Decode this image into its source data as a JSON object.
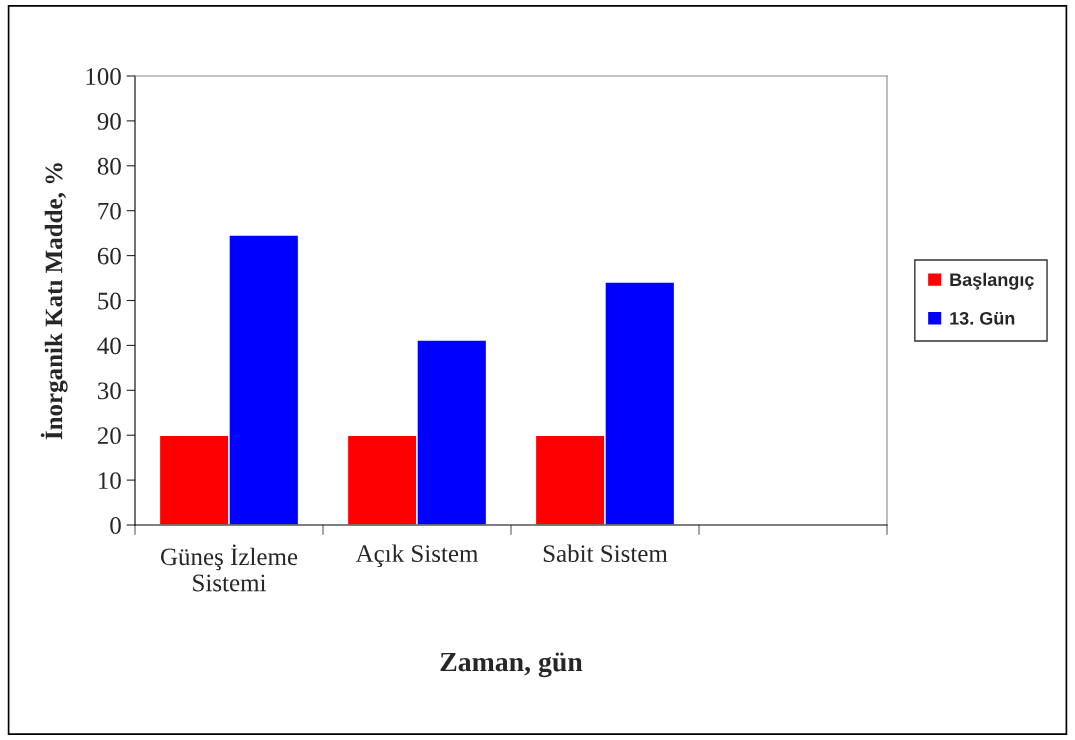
{
  "chart_data": {
    "type": "bar",
    "xlabel": "Zaman, gün",
    "ylabel": "İnorganik Katı Madde, %",
    "categories": [
      "Güneş İzleme\nSistemi",
      "Açık Sistem",
      "Sabit Sistem",
      null
    ],
    "series": [
      {
        "name": "Başlangıç",
        "color": "#ff0000",
        "values": [
          20,
          20,
          20,
          null
        ]
      },
      {
        "name": "13. Gün",
        "color": "#0000ff",
        "values": [
          64.6,
          41.2,
          54.1,
          null
        ]
      }
    ],
    "ylim": [
      0,
      100
    ],
    "yticks": [
      0,
      10,
      20,
      30,
      40,
      50,
      60,
      70,
      80,
      90,
      100
    ],
    "grid": false,
    "legend": "right"
  }
}
